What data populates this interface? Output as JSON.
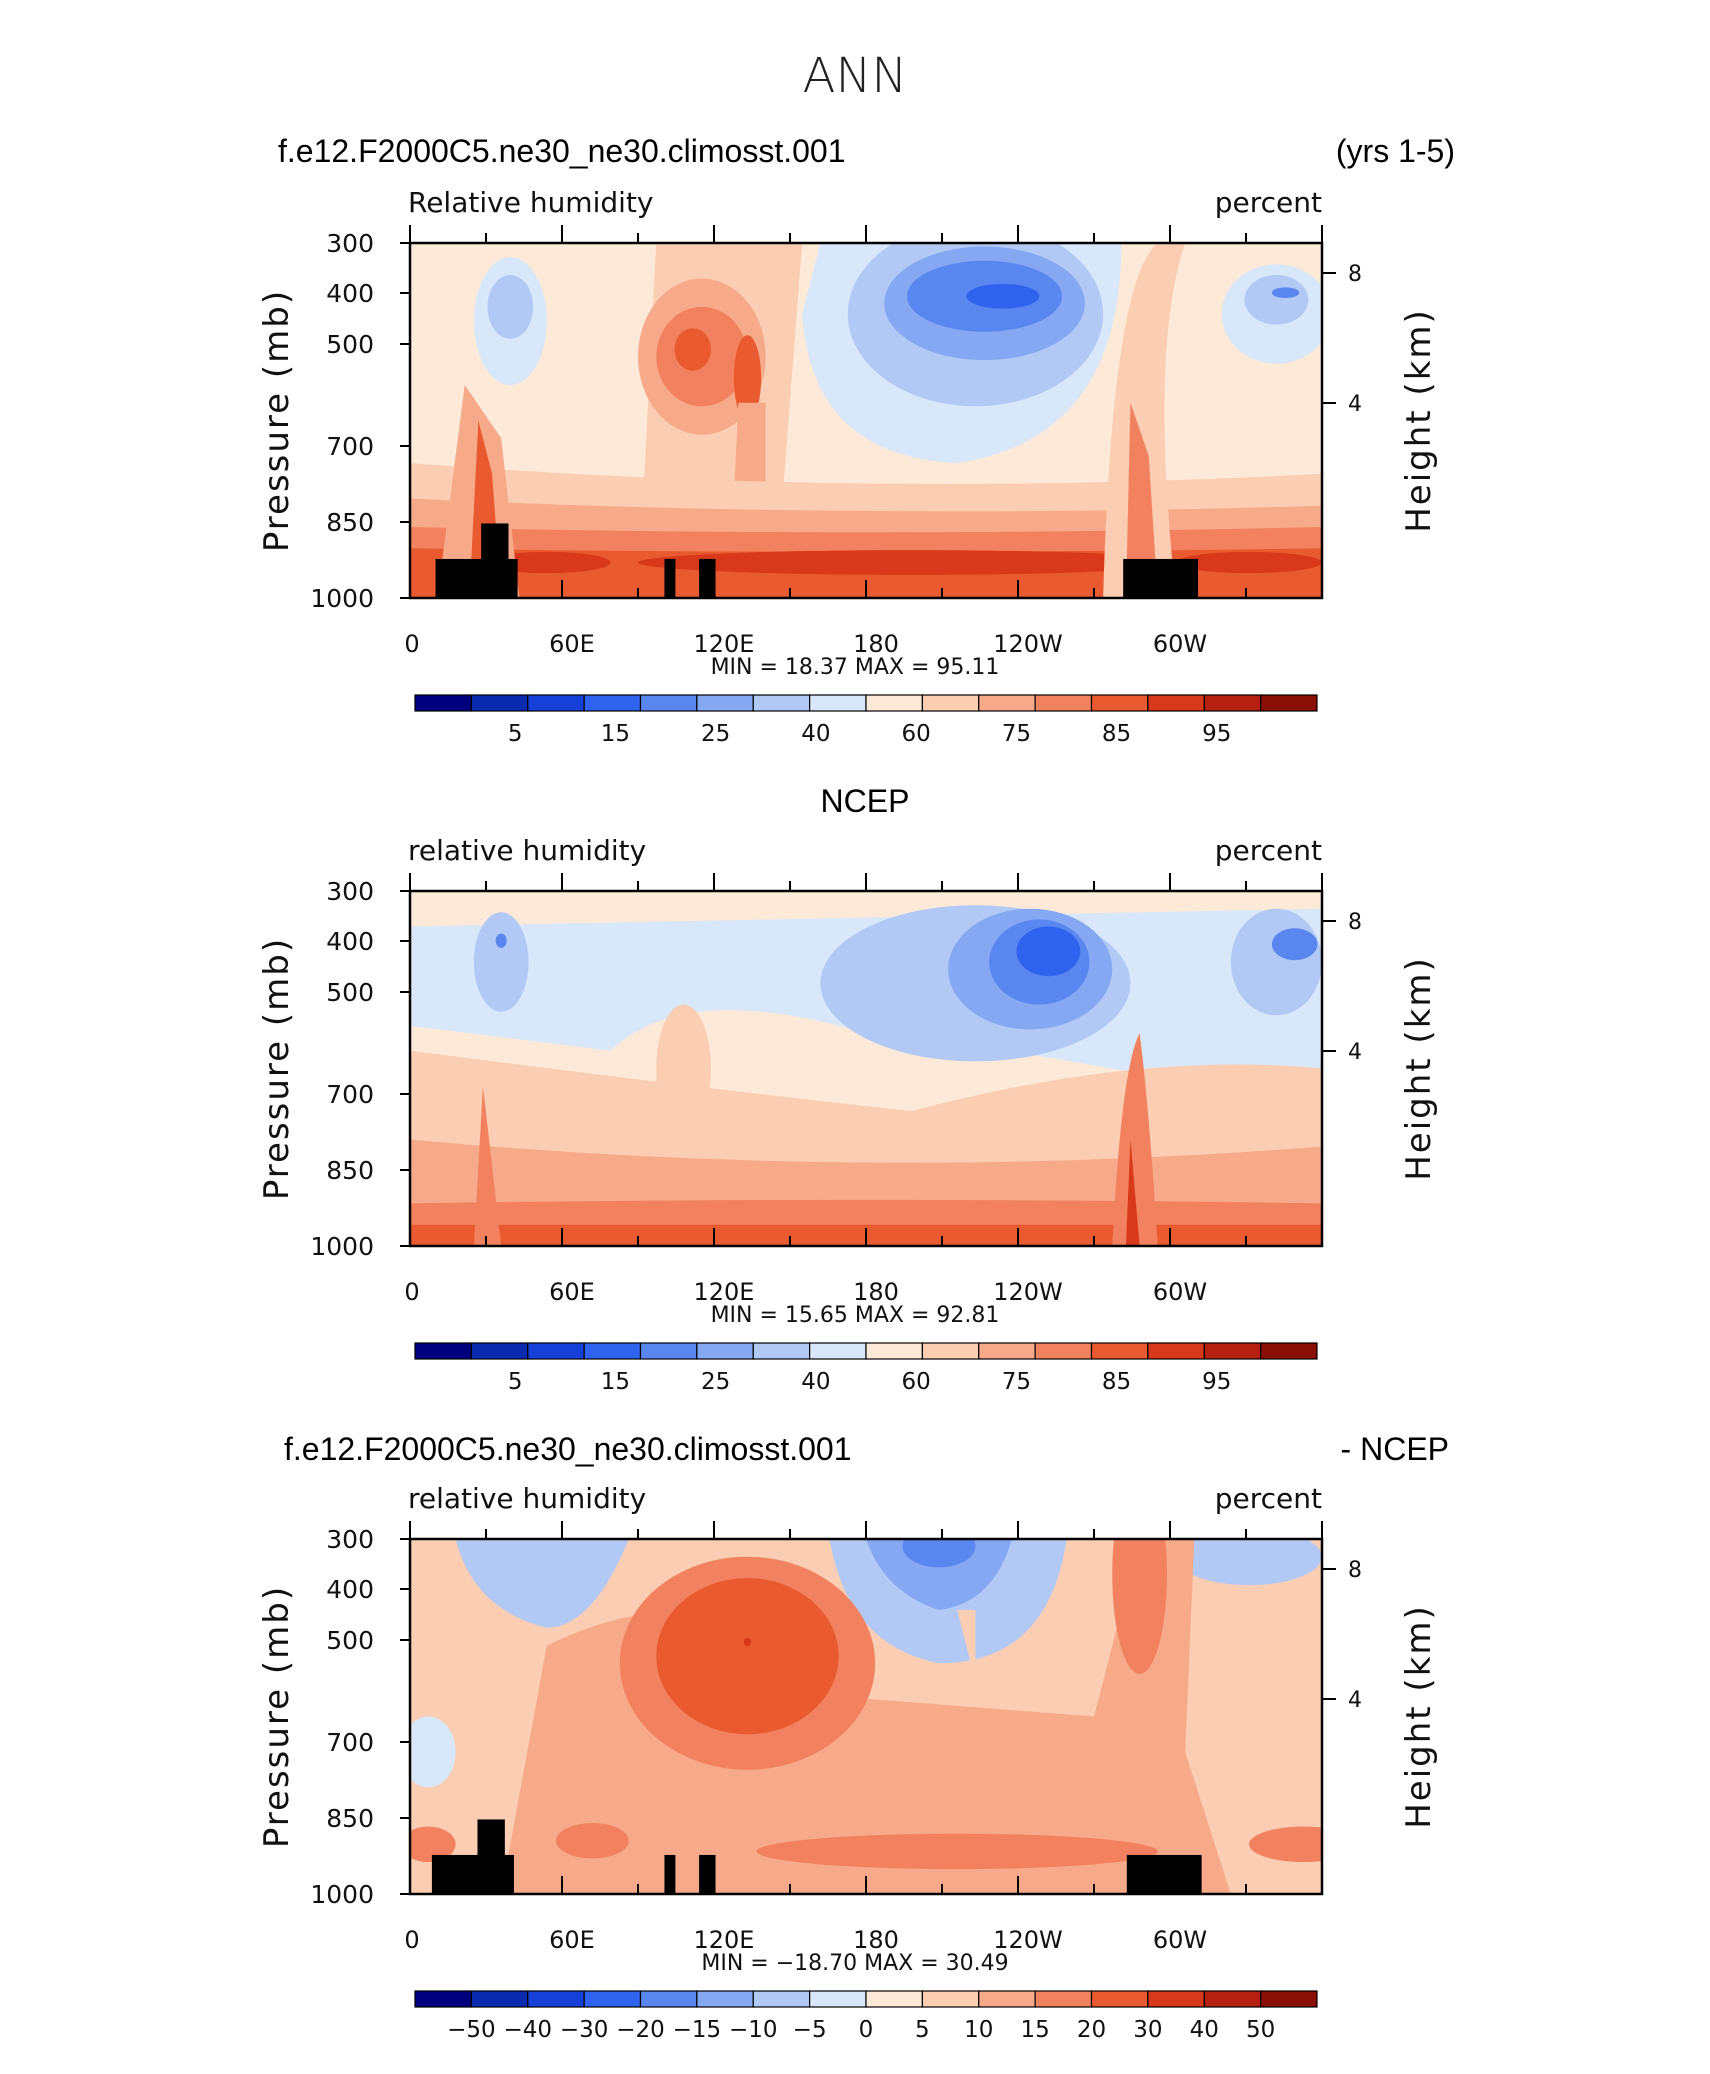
{
  "figure": {
    "title": "ANN"
  },
  "axes": {
    "x_ticks": [
      "0",
      "60E",
      "120E",
      "180",
      "120W",
      "60W"
    ],
    "y_ticks": [
      "300",
      "400",
      "500",
      "700",
      "850",
      "1000"
    ],
    "y_label": "Pressure (mb)",
    "right_ticks": [
      "8",
      "4"
    ],
    "right_label": "Height (km)"
  },
  "colors": {
    "rh_palette": [
      "#00007f",
      "#0a2ab0",
      "#1740d8",
      "#2f63ee",
      "#5a86f0",
      "#86a8f2",
      "#b2c9f6",
      "#d8e7f9",
      "#fde9d8",
      "#fbcdb2",
      "#f7aa8a",
      "#f2825f",
      "#ea5a30",
      "#d7391a",
      "#b52010",
      "#8a0f07"
    ],
    "rh_labels": [
      "5",
      "15",
      "25",
      "40",
      "60",
      "75",
      "85",
      "95"
    ],
    "diff_palette": [
      "#00007f",
      "#0a2ab0",
      "#1740d8",
      "#2f63ee",
      "#5a86f0",
      "#86a8f2",
      "#b2c9f6",
      "#d8e7f9",
      "#fde9d8",
      "#fbcdb2",
      "#f7aa8a",
      "#f2825f",
      "#ea5a30",
      "#d7391a",
      "#b52010",
      "#8a0f07"
    ],
    "diff_labels": [
      "−50",
      "−40",
      "−30",
      "−20",
      "−15",
      "−10",
      "−5",
      "0",
      "5",
      "10",
      "15",
      "20",
      "30",
      "40",
      "50"
    ]
  },
  "panels": [
    {
      "title_left": "f.e12.F2000C5.ne30_ne30.climosst.001",
      "title_right": "(yrs 1-5)",
      "variable": "Relative humidity",
      "units": "percent",
      "min_text": "MIN =   18.37   MAX =   95.11",
      "terrain": true
    },
    {
      "title_center": "NCEP",
      "variable": "relative humidity",
      "units": "percent",
      "min_text": "MIN =   15.65   MAX =   92.81",
      "terrain": false
    },
    {
      "title_left": "f.e12.F2000C5.ne30_ne30.climosst.001",
      "title_right": "- NCEP",
      "variable": "relative humidity",
      "units": "percent",
      "min_text": "MIN = −18.70   MAX =   30.49",
      "terrain": true
    }
  ],
  "chart_data": [
    {
      "type": "heatmap",
      "title": "f.e12.F2000C5.ne30_ne30.climosst.001",
      "subtitle": "Relative humidity",
      "xlabel": "",
      "ylabel": "Pressure (mb)",
      "units": "percent",
      "x": [
        "0",
        "60E",
        "120E",
        "180",
        "120W",
        "60W"
      ],
      "y": [
        300,
        400,
        500,
        700,
        850,
        1000
      ],
      "min": 18.37,
      "max": 95.11,
      "colorbar_levels": [
        5,
        10,
        15,
        20,
        25,
        30,
        40,
        50,
        60,
        70,
        75,
        80,
        85,
        90,
        95
      ]
    },
    {
      "type": "heatmap",
      "title": "NCEP",
      "subtitle": "relative humidity",
      "xlabel": "",
      "ylabel": "Pressure (mb)",
      "units": "percent",
      "x": [
        "0",
        "60E",
        "120E",
        "180",
        "120W",
        "60W"
      ],
      "y": [
        300,
        400,
        500,
        700,
        850,
        1000
      ],
      "min": 15.65,
      "max": 92.81,
      "colorbar_levels": [
        5,
        10,
        15,
        20,
        25,
        30,
        40,
        50,
        60,
        70,
        75,
        80,
        85,
        90,
        95
      ]
    },
    {
      "type": "heatmap",
      "title": "f.e12.F2000C5.ne30_ne30.climosst.001 - NCEP",
      "subtitle": "relative humidity",
      "xlabel": "",
      "ylabel": "Pressure (mb)",
      "units": "percent",
      "x": [
        "0",
        "60E",
        "120E",
        "180",
        "120W",
        "60W"
      ],
      "y": [
        300,
        400,
        500,
        700,
        850,
        1000
      ],
      "min": -18.7,
      "max": 30.49,
      "colorbar_levels": [
        -50,
        -40,
        -30,
        -20,
        -15,
        -10,
        -5,
        0,
        5,
        10,
        15,
        20,
        30,
        40,
        50
      ]
    }
  ]
}
